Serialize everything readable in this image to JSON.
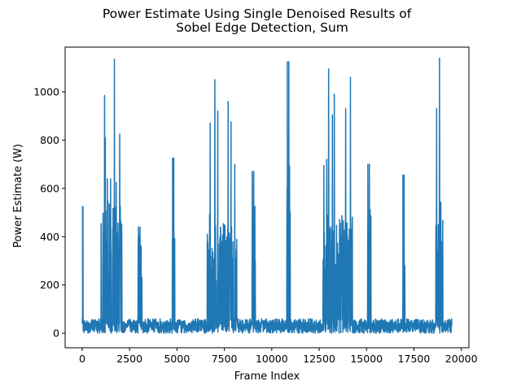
{
  "chart_data": {
    "type": "line",
    "title": "Power Estimate Using Single Denoised Results of\nSobel Edge Detection, Sum",
    "xlabel": "Frame Index",
    "ylabel": "Power Estimate (W)",
    "xlim": [
      -900,
      20400
    ],
    "ylim": [
      -60,
      1185
    ],
    "x_ticks": [
      0,
      2500,
      5000,
      7500,
      10000,
      12500,
      15000,
      17500,
      20000
    ],
    "y_ticks": [
      0,
      200,
      400,
      600,
      800,
      1000
    ],
    "x_range": [
      0,
      19500
    ],
    "baseline": {
      "low": 0,
      "high": 60
    },
    "line_color": "#1f77b4",
    "grid": false,
    "series": [
      {
        "name": "",
        "spikes": [
          {
            "start": 0,
            "end": 80,
            "peak": 525,
            "level": 120
          },
          {
            "start": 1000,
            "end": 2100,
            "peak": 1135,
            "level": 500,
            "peaks": [
              [
                1180,
                985
              ],
              [
                1220,
                810
              ],
              [
                1330,
                640
              ],
              [
                1500,
                640
              ],
              [
                1700,
                1135
              ],
              [
                1800,
                625
              ],
              [
                1980,
                825
              ]
            ]
          },
          {
            "start": 2950,
            "end": 3150,
            "peak": 440,
            "level": 380
          },
          {
            "start": 4750,
            "end": 4900,
            "peak": 725,
            "level": 390
          },
          {
            "start": 6600,
            "end": 8150,
            "peak": 1050,
            "level": 450,
            "peaks": [
              [
                6750,
                870
              ],
              [
                7000,
                1050
              ],
              [
                7150,
                920
              ],
              [
                7700,
                960
              ],
              [
                7850,
                875
              ],
              [
                8050,
                700
              ]
            ]
          },
          {
            "start": 8950,
            "end": 9150,
            "peak": 670,
            "level": 480
          },
          {
            "start": 10800,
            "end": 11000,
            "peak": 1125,
            "level": 650
          },
          {
            "start": 12700,
            "end": 14250,
            "peak": 1095,
            "level": 450,
            "peaks": [
              [
                12750,
                695
              ],
              [
                12900,
                720
              ],
              [
                13000,
                1095
              ],
              [
                13200,
                905
              ],
              [
                13300,
                990
              ],
              [
                13900,
                930
              ],
              [
                14150,
                1060
              ]
            ]
          },
          {
            "start": 15050,
            "end": 15250,
            "peak": 700,
            "level": 520
          },
          {
            "start": 16900,
            "end": 17050,
            "peak": 655,
            "level": 380
          },
          {
            "start": 18650,
            "end": 19050,
            "peak": 1140,
            "level": 500,
            "peaks": [
              [
                18700,
                930
              ],
              [
                18850,
                1140
              ],
              [
                18950,
                380
              ]
            ]
          }
        ]
      }
    ]
  }
}
